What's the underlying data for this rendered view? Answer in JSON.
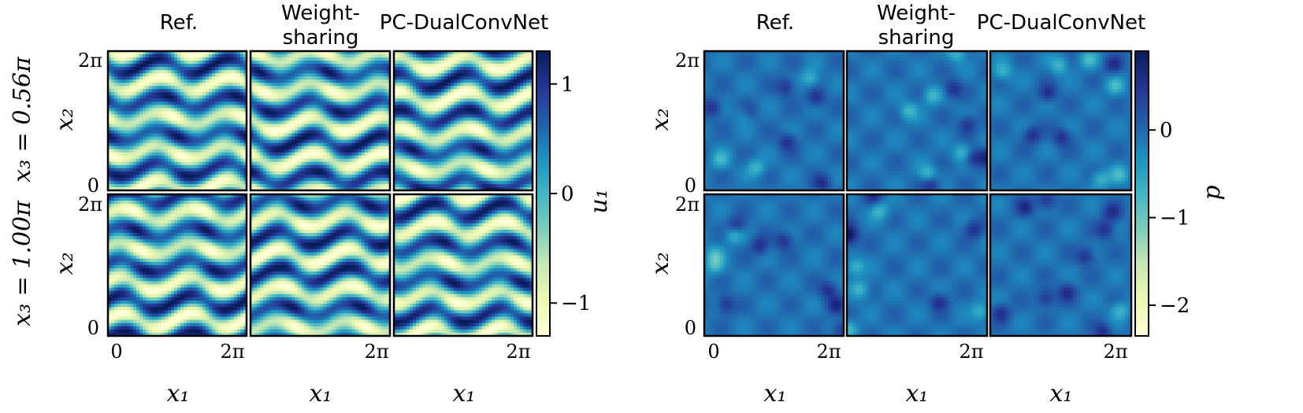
{
  "figure": {
    "left_group": {
      "column_titles": [
        [
          "Ref."
        ],
        [
          "Weight-",
          "sharing"
        ],
        [
          "PC-DualConvNet"
        ]
      ],
      "row_labels": [
        "x₃ = 0.56π",
        "x₃ = 1.00π"
      ],
      "y_axis_label": "x₂",
      "x_axis_label": "x₁",
      "x_ticks": [
        "0",
        "2π"
      ],
      "y_ticks": [
        "0",
        "2π"
      ],
      "colorbar": {
        "label": "u₁",
        "ticks": [
          "1",
          "0",
          "−1"
        ],
        "range": [
          -1.3,
          1.3
        ]
      }
    },
    "right_group": {
      "column_titles": [
        [
          "Ref."
        ],
        [
          "Weight-",
          "sharing"
        ],
        [
          "PC-DualConvNet"
        ]
      ],
      "y_axis_label": "x₂",
      "x_axis_label": "x₁",
      "x_ticks": [
        "0",
        "2π"
      ],
      "y_ticks": [
        "0",
        "2π"
      ],
      "colorbar": {
        "label": "p",
        "ticks": [
          "0",
          "−1",
          "−2"
        ],
        "range": [
          -2.35,
          0.9
        ]
      }
    },
    "colormap": {
      "name": "YlGnBu",
      "stops": [
        "#ffffd9",
        "#edf8b1",
        "#c7e9b4",
        "#7fcdbb",
        "#41b6c4",
        "#1d91c0",
        "#225ea8",
        "#253494",
        "#081d58"
      ]
    }
  }
}
